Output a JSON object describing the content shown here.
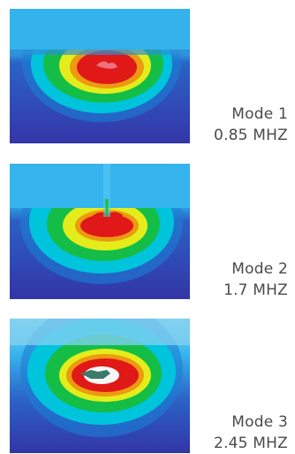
{
  "modes": [
    {
      "name": "Mode 1",
      "frequency": "0.85 MHZ"
    },
    {
      "name": "Mode 2",
      "frequency": "1.7 MHZ"
    },
    {
      "name": "Mode 3",
      "frequency": "2.45 MHZ"
    }
  ],
  "colors": {
    "background_water": "#29a8e6",
    "background_tissue": "#3a3fb0",
    "band_outer": "#00c8d8",
    "band_green": "#1cc23c",
    "band_yellow": "#e8ee1c",
    "band_core": "#e01818"
  }
}
